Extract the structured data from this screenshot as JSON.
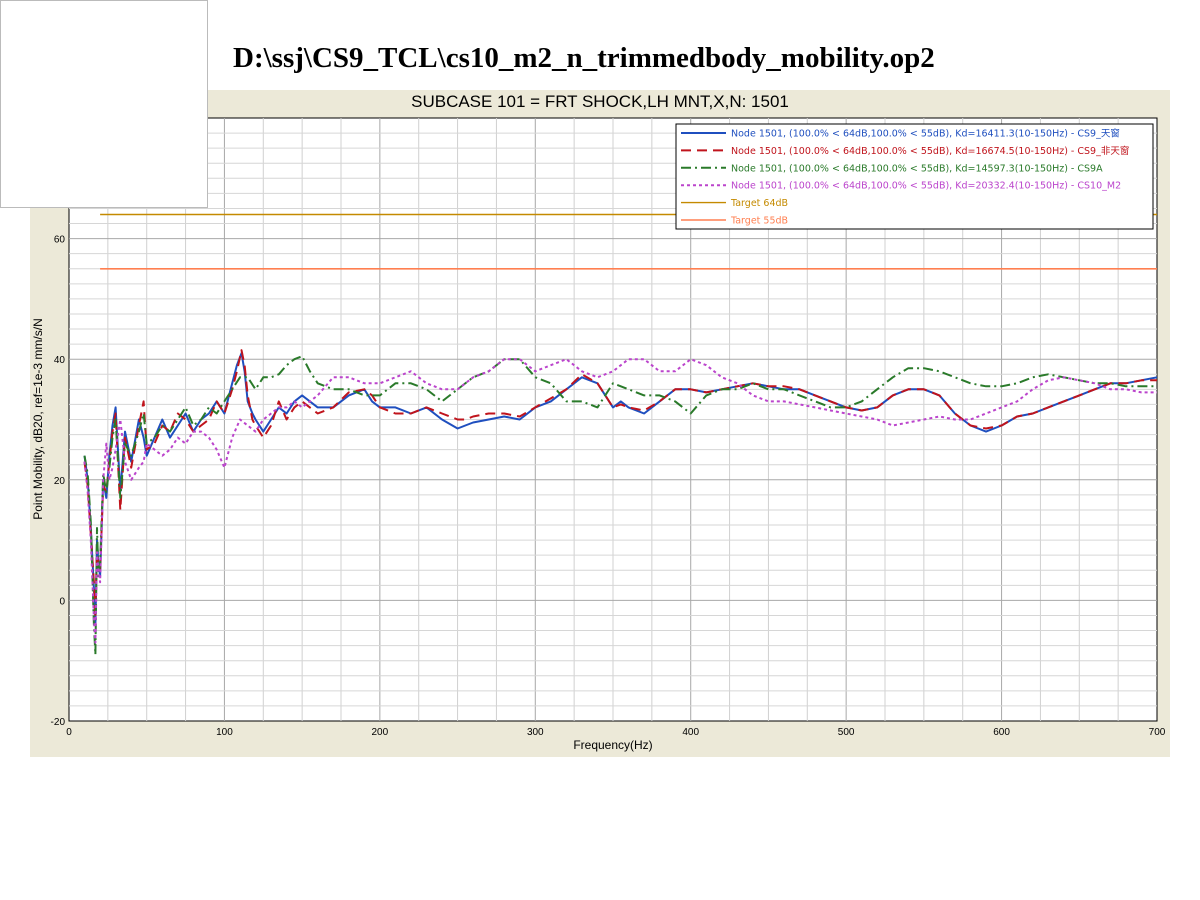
{
  "file_title": "D:\\ssj\\CS9_TCL\\cs10_m2_n_trimmedbody_mobility.op2",
  "chart_data": {
    "type": "line",
    "title": "SUBCASE 101 = FRT SHOCK,LH MNT,X,N: 1501",
    "xlabel": "Frequency(Hz)",
    "ylabel": "Point Mobility, dB20, ref=1e-3 mm/s/N",
    "xlim": [
      0,
      700
    ],
    "ylim": [
      -20,
      80
    ],
    "x_ticks": [
      "0",
      "100",
      "200",
      "300",
      "400",
      "500",
      "600",
      "700"
    ],
    "y_ticks": [
      "-20",
      "0",
      "20",
      "40",
      "60"
    ],
    "grid": true,
    "legend_position": "top-right",
    "series": [
      {
        "name": "Node 1501, (100.0% < 64dB,100.0% < 55dB), Kd=16411.3(10-150Hz) - CS9_天窗",
        "color": "#1f4fbf",
        "dash": "solid",
        "x": [
          10,
          12,
          14,
          16,
          17,
          18,
          19,
          20,
          22,
          24,
          26,
          28,
          30,
          33,
          36,
          40,
          45,
          48,
          50,
          55,
          60,
          65,
          70,
          75,
          80,
          85,
          90,
          95,
          100,
          105,
          108,
          111,
          113,
          115,
          118,
          120,
          125,
          130,
          135,
          140,
          145,
          150,
          160,
          170,
          180,
          190,
          195,
          200,
          210,
          220,
          230,
          240,
          250,
          255,
          260,
          270,
          280,
          290,
          300,
          310,
          320,
          330,
          340,
          350,
          355,
          360,
          370,
          380,
          390,
          400,
          410,
          420,
          430,
          440,
          450,
          460,
          470,
          480,
          490,
          500,
          510,
          520,
          530,
          540,
          550,
          560,
          570,
          580,
          590,
          600,
          610,
          620,
          630,
          640,
          650,
          660,
          670,
          680,
          690,
          700
        ],
        "y": [
          24,
          20,
          12,
          2,
          -4,
          10,
          6,
          4,
          20,
          17,
          24,
          29,
          32,
          18,
          28,
          23,
          30,
          27,
          24,
          27,
          30,
          27,
          29,
          31,
          28,
          30,
          31,
          33,
          31,
          36,
          39,
          41,
          38,
          33,
          31,
          30,
          28,
          30,
          32,
          31,
          33,
          34,
          32,
          32,
          34,
          35,
          33,
          32,
          32,
          31,
          32,
          30,
          28.5,
          29,
          29.5,
          30,
          30.5,
          30,
          32,
          33,
          35,
          37,
          36,
          32,
          33,
          32,
          31,
          33,
          35,
          35,
          34.5,
          35,
          35.5,
          36,
          35.5,
          35,
          35,
          34,
          33,
          32,
          31.5,
          32,
          34,
          35,
          35,
          34,
          31,
          29,
          28,
          29,
          30.5,
          31,
          32,
          33,
          34,
          35,
          36,
          36,
          36.5,
          37
        ]
      },
      {
        "name": "Node 1501, (100.0% < 64dB,100.0% < 55dB), Kd=16674.5(10-150Hz) - CS9_非天窗",
        "color": "#c0141c",
        "dash": "10,6",
        "x": [
          10,
          12,
          14,
          16,
          17,
          18,
          19,
          20,
          22,
          24,
          26,
          28,
          30,
          33,
          36,
          40,
          45,
          48,
          50,
          55,
          60,
          65,
          70,
          75,
          80,
          85,
          90,
          95,
          100,
          105,
          108,
          111,
          113,
          115,
          118,
          120,
          125,
          130,
          135,
          140,
          145,
          150,
          160,
          170,
          180,
          190,
          195,
          200,
          210,
          220,
          230,
          240,
          250,
          255,
          260,
          270,
          280,
          290,
          300,
          310,
          320,
          330,
          340,
          350,
          355,
          360,
          370,
          380,
          390,
          400,
          410,
          420,
          430,
          440,
          450,
          460,
          470,
          480,
          490,
          500,
          510,
          520,
          530,
          540,
          550,
          560,
          570,
          580,
          590,
          600,
          610,
          620,
          630,
          640,
          650,
          660,
          670,
          680,
          690,
          700
        ],
        "y": [
          23,
          19,
          11,
          3,
          -3,
          9,
          5,
          5,
          19,
          18,
          23,
          28,
          31,
          15,
          27,
          22,
          29,
          33,
          25,
          26,
          29,
          28,
          31,
          30,
          28,
          29,
          30,
          33,
          31,
          35,
          38,
          41.5,
          39,
          34,
          30,
          29,
          27,
          29,
          33,
          30,
          32,
          33,
          31,
          32,
          34.5,
          35,
          34,
          32,
          31,
          31,
          32,
          31,
          30,
          30,
          30.5,
          31,
          31,
          30.5,
          32,
          33.5,
          35,
          37.5,
          36,
          32,
          32.5,
          32,
          31.5,
          33,
          35,
          35,
          34.5,
          35,
          35.5,
          36,
          35.5,
          35.5,
          35,
          34,
          33,
          32,
          31.5,
          32,
          34,
          35,
          35,
          34,
          31,
          29,
          28.5,
          29,
          30.5,
          31,
          32,
          33,
          34,
          35,
          36,
          36,
          36.5,
          36.5
        ]
      },
      {
        "name": "Node 1501, (100.0% < 64dB,100.0% < 55dB), Kd=14597.3(10-150Hz) - CS9A",
        "color": "#2a7a2a",
        "dash": "10,4,2,4",
        "x": [
          10,
          12,
          14,
          16,
          17,
          18,
          19,
          20,
          22,
          24,
          26,
          28,
          30,
          33,
          36,
          40,
          45,
          48,
          50,
          55,
          60,
          65,
          70,
          75,
          80,
          85,
          90,
          95,
          100,
          105,
          110,
          115,
          120,
          125,
          130,
          135,
          140,
          145,
          150,
          155,
          160,
          170,
          180,
          190,
          200,
          210,
          220,
          230,
          240,
          250,
          260,
          270,
          280,
          290,
          300,
          310,
          320,
          330,
          340,
          350,
          360,
          370,
          380,
          390,
          400,
          410,
          420,
          430,
          440,
          450,
          460,
          470,
          480,
          490,
          500,
          510,
          520,
          530,
          540,
          550,
          560,
          570,
          580,
          590,
          600,
          610,
          620,
          630,
          640,
          650,
          660,
          670,
          680,
          690,
          700
        ],
        "y": [
          24,
          21,
          13,
          -4,
          -9,
          12,
          4,
          6,
          21,
          18,
          22,
          27,
          30,
          17,
          26,
          24,
          28,
          31,
          26,
          27,
          29,
          28,
          30,
          32,
          29,
          30,
          32,
          31,
          33,
          35,
          37,
          37,
          35,
          37,
          37,
          37.5,
          39,
          40,
          40.5,
          38,
          36,
          35,
          35,
          34,
          34,
          36,
          36,
          35,
          33,
          35,
          37,
          38,
          40,
          40,
          37,
          36,
          33,
          33,
          32,
          36,
          35,
          34,
          34,
          33,
          31,
          34,
          35,
          35,
          36,
          35,
          35,
          34,
          33,
          32,
          32,
          33,
          35,
          37,
          38.5,
          38.5,
          38,
          37,
          36,
          35.5,
          35.5,
          36,
          37,
          37.5,
          37,
          36.5,
          36,
          36,
          35.5,
          35.5,
          35.5
        ]
      },
      {
        "name": "Node 1501, (100.0% < 64dB,100.0% < 55dB), Kd=20332.4(10-150Hz) - CS10_M2",
        "color": "#bb44cc",
        "dash": "3,3",
        "x": [
          10,
          12,
          14,
          16,
          17,
          18,
          19,
          20,
          22,
          24,
          26,
          28,
          30,
          33,
          36,
          40,
          45,
          48,
          50,
          55,
          60,
          65,
          70,
          75,
          80,
          85,
          90,
          95,
          100,
          105,
          110,
          115,
          120,
          125,
          130,
          135,
          140,
          145,
          150,
          160,
          170,
          180,
          190,
          200,
          210,
          220,
          230,
          240,
          250,
          260,
          270,
          280,
          290,
          300,
          310,
          320,
          330,
          340,
          350,
          360,
          370,
          380,
          390,
          400,
          410,
          420,
          430,
          440,
          450,
          460,
          470,
          480,
          490,
          500,
          510,
          520,
          530,
          540,
          550,
          560,
          570,
          580,
          590,
          600,
          610,
          620,
          630,
          640,
          650,
          660,
          670,
          680,
          690,
          700
        ],
        "y": [
          23,
          18,
          10,
          -3,
          -7,
          8,
          5,
          3,
          20,
          26,
          20,
          22,
          25,
          30,
          23,
          20,
          22,
          23,
          26,
          25,
          24,
          25,
          27,
          26,
          28,
          28,
          27,
          25,
          22,
          27,
          30,
          29,
          28,
          30,
          31,
          32,
          32,
          33,
          32,
          34,
          37,
          37,
          36,
          36,
          37,
          38,
          36,
          35,
          35,
          37,
          38,
          40,
          40,
          38,
          39,
          40,
          38,
          37,
          38,
          40,
          40,
          38,
          38,
          40,
          39,
          37,
          36,
          34,
          33,
          33,
          32.5,
          32,
          31.5,
          31,
          30.5,
          30,
          29,
          29.5,
          30,
          30.5,
          30,
          30,
          31,
          32,
          33,
          35,
          36.5,
          37,
          36.5,
          36,
          35,
          35,
          34.5,
          34.5
        ]
      },
      {
        "name": "Target 64dB",
        "color": "#c48a00",
        "dash": "solid",
        "x": [
          20,
          700
        ],
        "y": [
          64,
          64
        ]
      },
      {
        "name": "Target 55dB",
        "color": "#ff7f50",
        "dash": "solid",
        "x": [
          20,
          700
        ],
        "y": [
          55,
          55
        ]
      }
    ]
  }
}
